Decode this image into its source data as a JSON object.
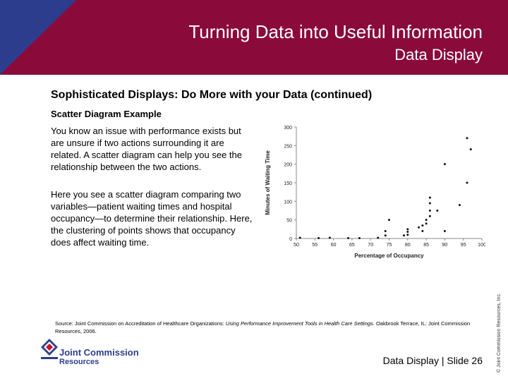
{
  "header": {
    "title": "Turning Data into Useful Information",
    "subtitle": "Data Display"
  },
  "content": {
    "heading": "Sophisticated Displays: Do More with your Data (continued)",
    "subheading": "Scatter Diagram Example",
    "paragraph1": "You know an issue with performance exists but are unsure if two actions surrounding it are related. A scatter diagram can help you see the relationship between the two actions.",
    "paragraph2": "Here you see a scatter diagram comparing two variables—patient waiting times and hospital occupancy—to determine their relationship. Here, the clustering of points shows that occupancy does affect waiting time."
  },
  "chart_data": {
    "type": "scatter",
    "xlabel": "Percentage of Occupancy",
    "ylabel": "Minutes of Waiting Time",
    "xlim": [
      50,
      100
    ],
    "ylim": [
      0,
      300
    ],
    "xticks": [
      "50",
      "55",
      "60",
      "65",
      "70",
      "75",
      "80",
      "85",
      "90",
      "95",
      "100"
    ],
    "yticks": [
      "0",
      "50",
      "100",
      "150",
      "200",
      "250",
      "300"
    ],
    "points": [
      [
        51,
        2
      ],
      [
        56,
        1
      ],
      [
        59,
        2
      ],
      [
        64,
        1
      ],
      [
        67,
        1
      ],
      [
        72,
        2
      ],
      [
        74,
        8
      ],
      [
        74,
        20
      ],
      [
        75,
        50
      ],
      [
        79,
        8
      ],
      [
        80,
        10
      ],
      [
        80,
        18
      ],
      [
        80,
        25
      ],
      [
        83,
        30
      ],
      [
        84,
        20
      ],
      [
        84,
        35
      ],
      [
        85,
        40
      ],
      [
        85,
        50
      ],
      [
        86,
        60
      ],
      [
        86,
        75
      ],
      [
        86,
        95
      ],
      [
        86,
        110
      ],
      [
        88,
        75
      ],
      [
        90,
        20
      ],
      [
        90,
        200
      ],
      [
        94,
        90
      ],
      [
        96,
        150
      ],
      [
        96,
        270
      ],
      [
        97,
        240
      ]
    ]
  },
  "source": {
    "prefix": "Source: Joint Commission on Accreditation of Healthcare Organizations: ",
    "title": "Using Performance Improvement Tools in Health Care Settings",
    "suffix": ". Oakbrook Terrace, IL: Joint Commission Resources, 2006."
  },
  "logo": {
    "line1": "Joint Commission",
    "line2": "Resources"
  },
  "footer": "Data Display | Slide 26",
  "copyright": "© Joint Commission Resources, Inc."
}
